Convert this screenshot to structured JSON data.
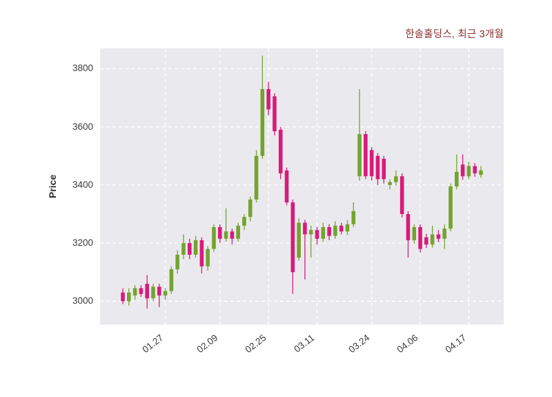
{
  "header": {
    "title": "한솔홀딩스, 최근 3개월"
  },
  "chart_data": {
    "type": "candlestick",
    "title": "한솔홀딩스, 최근 3개월",
    "ylabel": "Price",
    "ylim": [
      2920,
      3870
    ],
    "yticks": [
      3000,
      3200,
      3400,
      3600,
      3800
    ],
    "xtick_labels": [
      "01.27",
      "02.09",
      "02.25",
      "03.11",
      "03.24",
      "04.06",
      "04.17"
    ],
    "xtick_indices": [
      7,
      16,
      24,
      32,
      41,
      49,
      57
    ],
    "grid": true,
    "legend": "none",
    "colors": {
      "up": "#74a32f",
      "down": "#d81b7a",
      "plot_bg": "#eaeaee",
      "grid": "#ffffff",
      "title": "#8b2e2e",
      "tick": "#3a3a3a"
    },
    "columns": [
      "open",
      "high",
      "low",
      "close"
    ],
    "candles": [
      [
        3030,
        3045,
        2990,
        3000
      ],
      [
        3000,
        3045,
        2985,
        3030
      ],
      [
        3020,
        3055,
        3005,
        3045
      ],
      [
        3045,
        3055,
        3015,
        3025
      ],
      [
        3060,
        3090,
        2975,
        3010
      ],
      [
        3010,
        3060,
        3000,
        3050
      ],
      [
        3050,
        3060,
        2980,
        3020
      ],
      [
        3020,
        3045,
        3005,
        3035
      ],
      [
        3035,
        3120,
        3025,
        3110
      ],
      [
        3110,
        3175,
        3095,
        3160
      ],
      [
        3160,
        3230,
        3145,
        3200
      ],
      [
        3200,
        3215,
        3145,
        3160
      ],
      [
        3160,
        3225,
        3150,
        3210
      ],
      [
        3210,
        3220,
        3095,
        3120
      ],
      [
        3120,
        3190,
        3105,
        3180
      ],
      [
        3180,
        3265,
        3170,
        3255
      ],
      [
        3255,
        3265,
        3200,
        3215
      ],
      [
        3215,
        3320,
        3205,
        3240
      ],
      [
        3240,
        3250,
        3195,
        3215
      ],
      [
        3215,
        3270,
        3205,
        3260
      ],
      [
        3260,
        3300,
        3245,
        3290
      ],
      [
        3290,
        3360,
        3275,
        3350
      ],
      [
        3350,
        3520,
        3340,
        3500
      ],
      [
        3500,
        3845,
        3490,
        3730
      ],
      [
        3730,
        3755,
        3640,
        3660
      ],
      [
        3705,
        3715,
        3570,
        3585
      ],
      [
        3590,
        3600,
        3420,
        3440
      ],
      [
        3450,
        3460,
        3330,
        3340
      ],
      [
        3340,
        3350,
        3025,
        3100
      ],
      [
        3150,
        3285,
        3140,
        3270
      ],
      [
        3270,
        3280,
        3075,
        3230
      ],
      [
        3230,
        3260,
        3150,
        3245
      ],
      [
        3245,
        3255,
        3195,
        3215
      ],
      [
        3215,
        3270,
        3205,
        3255
      ],
      [
        3255,
        3265,
        3210,
        3225
      ],
      [
        3225,
        3275,
        3215,
        3260
      ],
      [
        3260,
        3270,
        3230,
        3240
      ],
      [
        3240,
        3280,
        3228,
        3265
      ],
      [
        3265,
        3340,
        3255,
        3310
      ],
      [
        3430,
        3730,
        3415,
        3575
      ],
      [
        3575,
        3585,
        3420,
        3430
      ],
      [
        3520,
        3530,
        3415,
        3430
      ],
      [
        3500,
        3510,
        3400,
        3420
      ],
      [
        3490,
        3500,
        3405,
        3420
      ],
      [
        3400,
        3420,
        3385,
        3410
      ],
      [
        3410,
        3450,
        3398,
        3430
      ],
      [
        3430,
        3440,
        3288,
        3300
      ],
      [
        3300,
        3310,
        3150,
        3210
      ],
      [
        3210,
        3265,
        3198,
        3255
      ],
      [
        3255,
        3265,
        3168,
        3180
      ],
      [
        3220,
        3232,
        3183,
        3195
      ],
      [
        3195,
        3260,
        3185,
        3230
      ],
      [
        3230,
        3245,
        3203,
        3215
      ],
      [
        3215,
        3265,
        3180,
        3250
      ],
      [
        3250,
        3405,
        3240,
        3395
      ],
      [
        3395,
        3505,
        3385,
        3445
      ],
      [
        3470,
        3505,
        3418,
        3430
      ],
      [
        3430,
        3480,
        3420,
        3465
      ],
      [
        3465,
        3475,
        3428,
        3440
      ],
      [
        3435,
        3465,
        3425,
        3450
      ]
    ]
  }
}
